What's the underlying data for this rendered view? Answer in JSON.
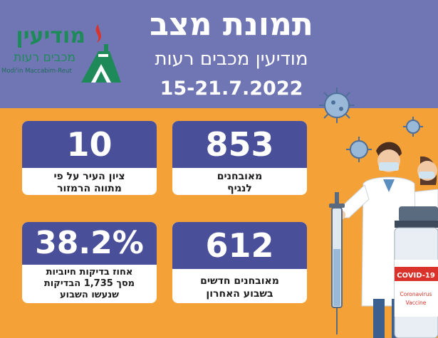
{
  "header": {
    "title": "תמונת מצב",
    "subtitle": "מודיעין מכבים רעות",
    "dates": "15-21.7.2022"
  },
  "logo": {
    "hebrew_name": "מודיעין",
    "hebrew_sub": "מכבים רעות",
    "english": "Modi'in Maccabim-Reut"
  },
  "stats": {
    "diagnosed": {
      "value": "853",
      "label_line1": "מאובחנים",
      "label_line2": "לנגיף"
    },
    "city_score": {
      "value": "10",
      "label_line1": "ציון העיר על פי",
      "label_line2": "מתווה הרמזור"
    },
    "new_diagnosed": {
      "value": "612",
      "label_line1": "מאובחנים חדשים",
      "label_line2": "בשבוע האחרון"
    },
    "positive_rate": {
      "value": "38.2%",
      "label_line1": "אחוז בדיקות חיוביות",
      "label_line2": "מסך 1,735 הבדיקות",
      "label_line3": "שנעשו השבוע"
    }
  },
  "illustration": {
    "vial_label": "COVID-19",
    "vial_sub1": "Coronavirus",
    "vial_sub2": "Vaccine"
  },
  "colors": {
    "header_bg": "#7076b4",
    "page_bg": "#f4a237",
    "card_header": "#4a4f9a",
    "logo_green": "#1e8a5a"
  }
}
